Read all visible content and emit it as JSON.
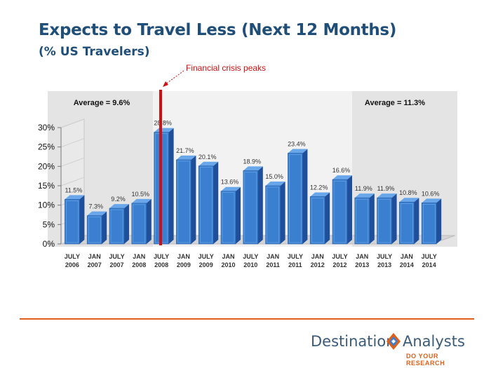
{
  "header": {
    "title": "Expects to Travel Less (Next 12 Months)",
    "subtitle": "(% US Travelers)"
  },
  "chart_data": {
    "type": "bar",
    "title": "Expects to Travel Less (Next 12 Months)",
    "subtitle": "(% US Travelers)",
    "categories": [
      [
        "JULY",
        "2006"
      ],
      [
        "JAN",
        "2007"
      ],
      [
        "JULY",
        "2007"
      ],
      [
        "JAN",
        "2008"
      ],
      [
        "JULY",
        "2008"
      ],
      [
        "JAN",
        "2009"
      ],
      [
        "JULY",
        "2009"
      ],
      [
        "JAN",
        "2010"
      ],
      [
        "JULY",
        "2010"
      ],
      [
        "JAN",
        "2011"
      ],
      [
        "JULY",
        "2011"
      ],
      [
        "JAN",
        "2012"
      ],
      [
        "JULY",
        "2012"
      ],
      [
        "JAN",
        "2013"
      ],
      [
        "JULY",
        "2013"
      ],
      [
        "JAN",
        "2014"
      ],
      [
        "JULY",
        "2014"
      ]
    ],
    "values": [
      11.5,
      7.3,
      9.2,
      10.5,
      28.8,
      21.7,
      20.1,
      13.6,
      18.9,
      15.0,
      23.4,
      12.2,
      16.6,
      11.9,
      11.9,
      10.8,
      10.6
    ],
    "value_labels": [
      "11.5%",
      "7.3%",
      "9.2%",
      "10.5%",
      "28.8%",
      "21.7%",
      "20.1%",
      "13.6%",
      "18.9%",
      "15.0%",
      "23.4%",
      "12.2%",
      "16.6%",
      "11.9%",
      "11.9%",
      "10.8%",
      "10.6%"
    ],
    "ylim": [
      0,
      30
    ],
    "yticks": [
      "0%",
      "5%",
      "10%",
      "15%",
      "20%",
      "25%",
      "30%"
    ],
    "ytick_values": [
      0,
      5,
      10,
      15,
      20,
      25,
      30
    ],
    "grid": false,
    "three_d": true,
    "bar_color": "#3a7fd0",
    "annotations": {
      "crisis_label": "Financial crisis peaks",
      "crisis_color": "#d01010",
      "average_left": "Average = 9.6%",
      "average_right": "Average = 11.3%"
    }
  },
  "branding": {
    "logo_part1": "Destination",
    "logo_part2": "Analysts",
    "tagline": "DO YOUR RESEARCH",
    "accent_color": "#e0601a",
    "brand_color": "#3a5b7a"
  }
}
